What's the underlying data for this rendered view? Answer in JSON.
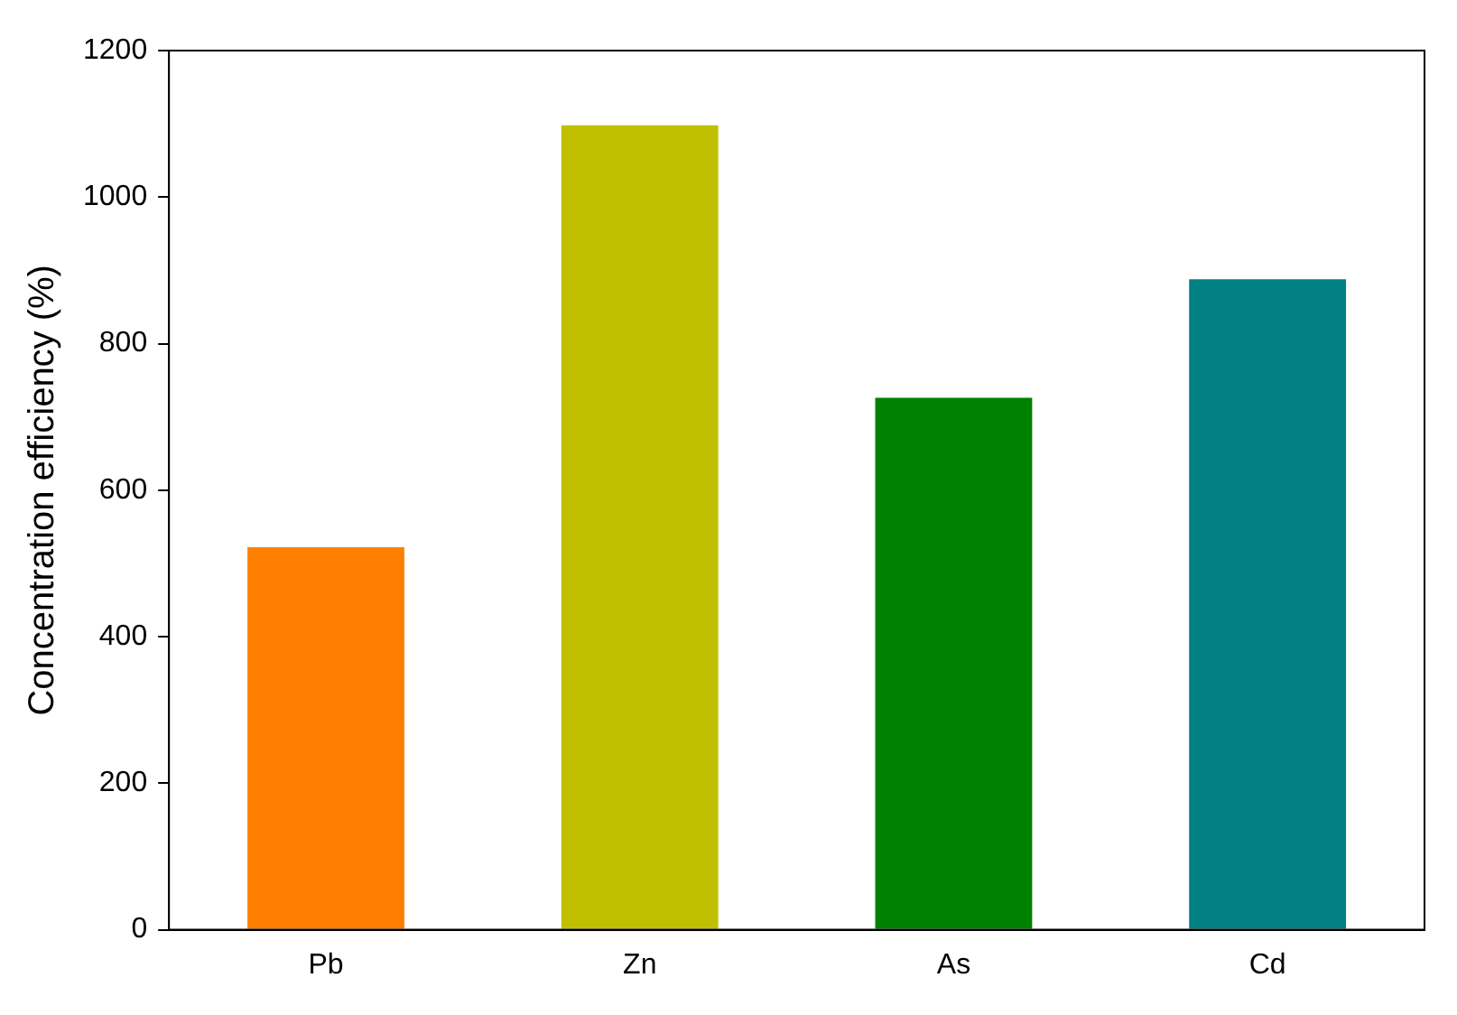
{
  "chart_data": {
    "type": "bar",
    "ylabel": "Concentration efficiency (%)",
    "categories": [
      "Pb",
      "Zn",
      "As",
      "Cd"
    ],
    "values": [
      522,
      1098,
      726,
      888
    ],
    "colors": [
      "#ff8000",
      "#c0c000",
      "#008000",
      "#008080"
    ],
    "ylim": [
      0,
      1200
    ],
    "yticks": [
      0,
      200,
      400,
      600,
      800,
      1000,
      1200
    ],
    "grid": false,
    "legend": false
  }
}
